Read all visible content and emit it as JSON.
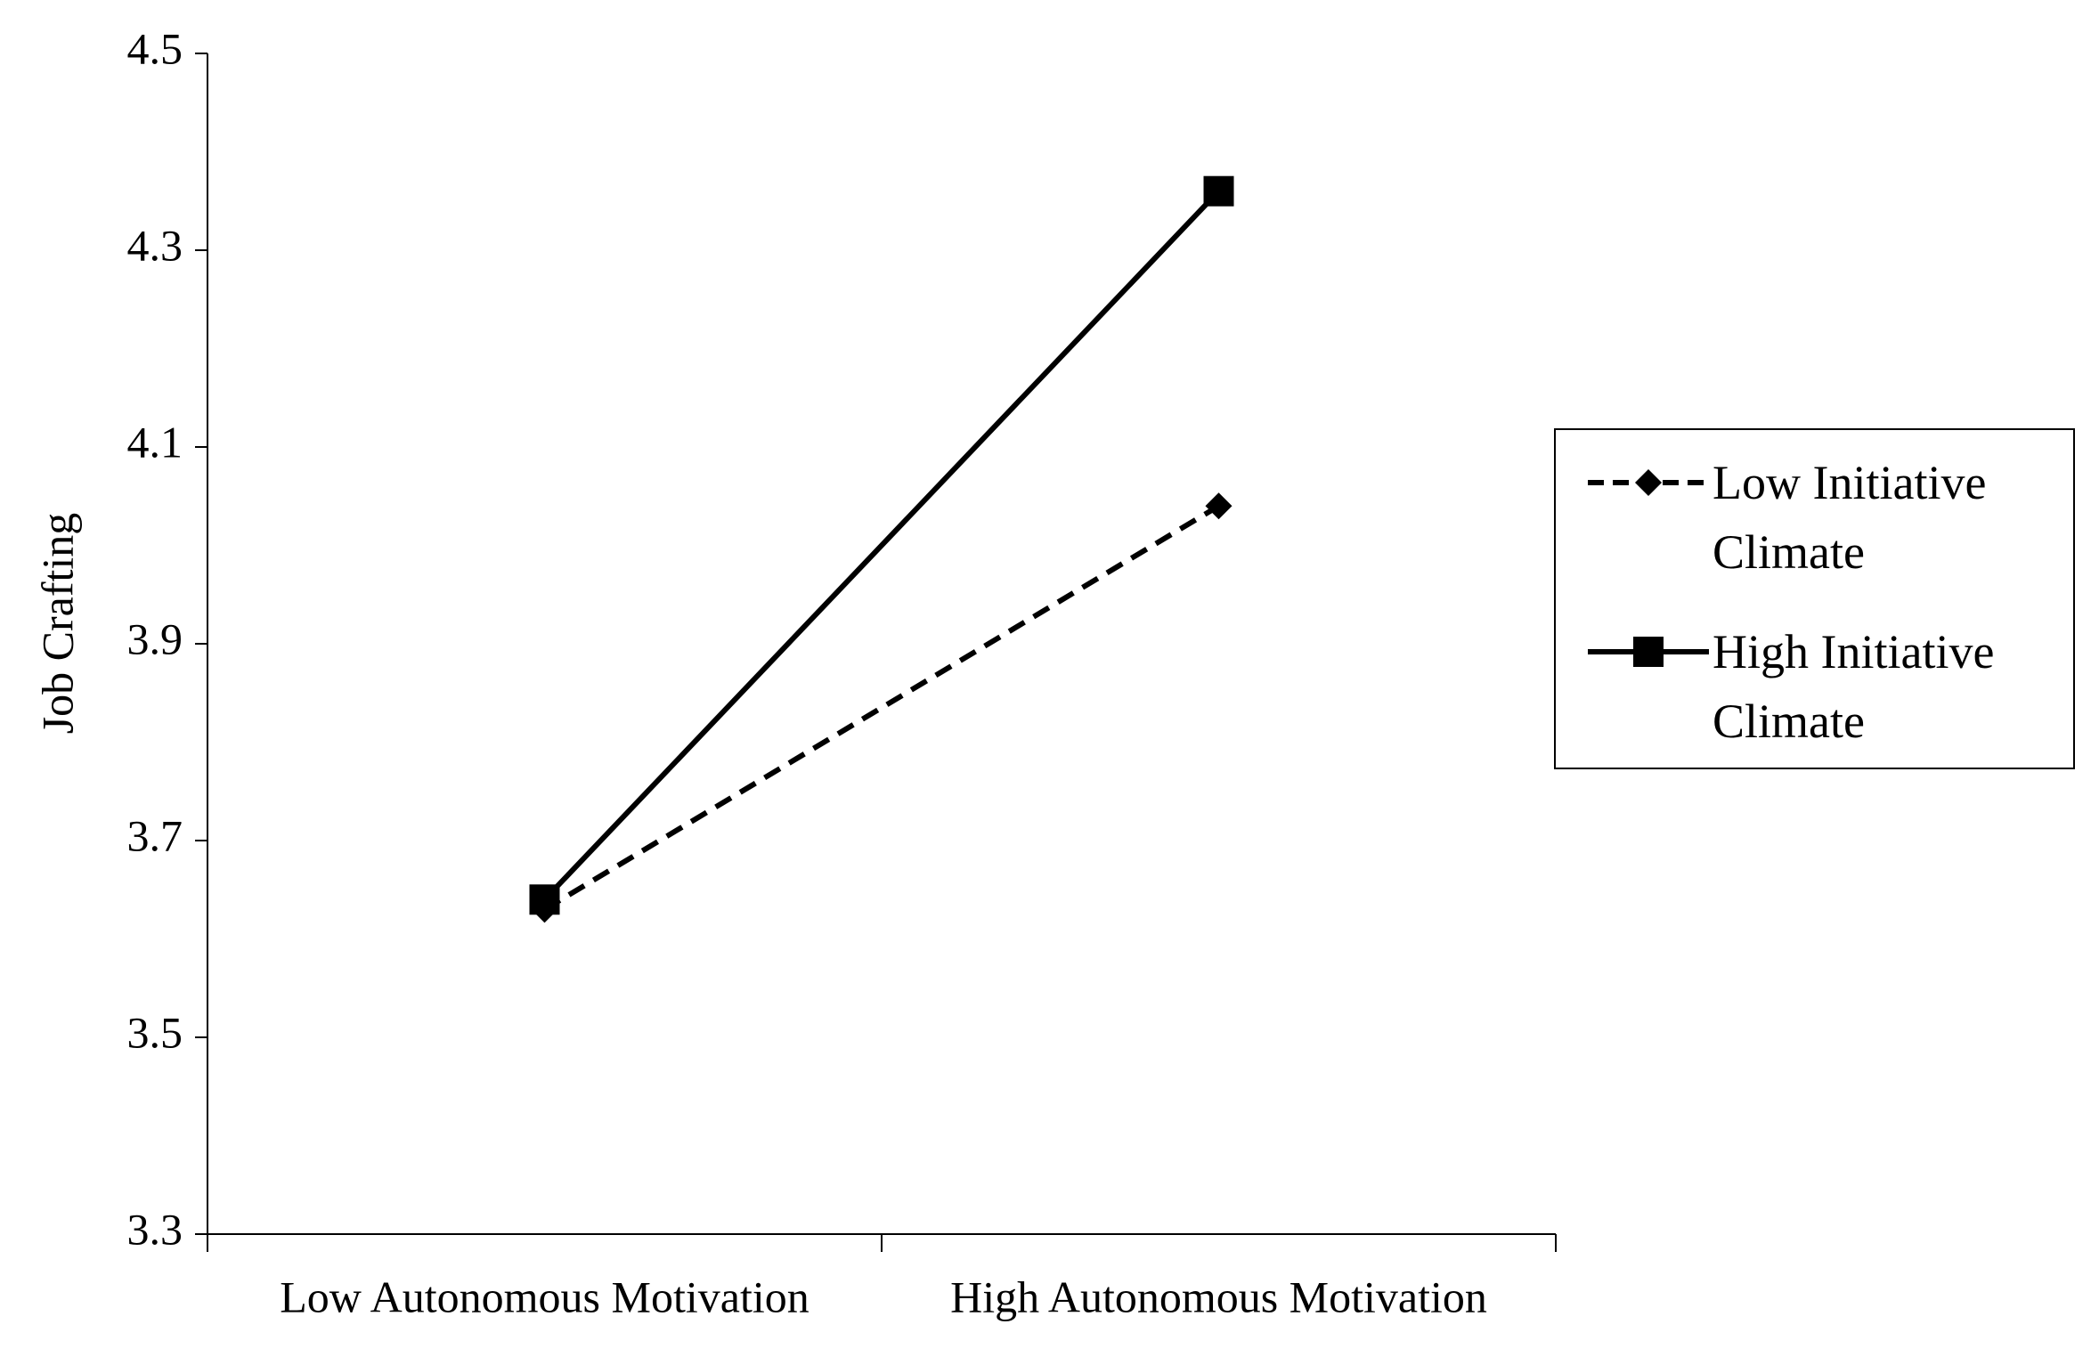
{
  "chart_data": {
    "type": "line",
    "y_label": "Job Crafting",
    "categories": [
      "Low Autonomous Motivation",
      "High Autonomous Motivation"
    ],
    "series": [
      {
        "name": "Low Initiative Climate",
        "color": "#000000",
        "style": "dashed",
        "marker": "diamond",
        "values": [
          3.63,
          4.04
        ]
      },
      {
        "name": "High Initiative Climate",
        "color": "#000000",
        "style": "solid",
        "marker": "square",
        "values": [
          3.64,
          4.36
        ]
      }
    ],
    "ylim": [
      3.3,
      4.5
    ],
    "yticks": [
      3.3,
      3.5,
      3.7,
      3.9,
      4.1,
      4.3,
      4.5
    ],
    "legend": "right"
  }
}
